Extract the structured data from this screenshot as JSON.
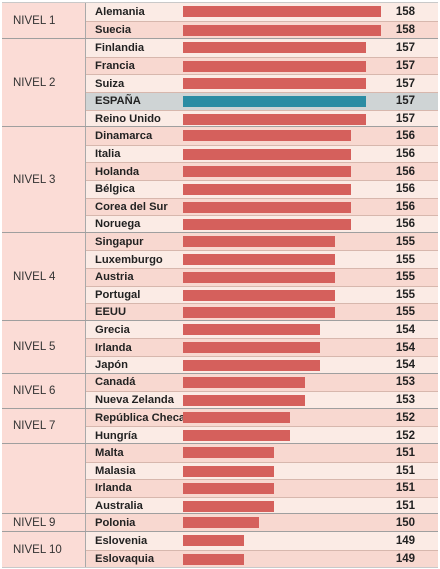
{
  "chart_data": {
    "type": "bar",
    "orientation": "horizontal",
    "title": "",
    "xlabel": "",
    "ylabel": "",
    "xlim": [
      145,
      158
    ],
    "colors": {
      "default": "#d5605c",
      "highlight": "#2b8ca3",
      "bg_even": "#f8d8d0",
      "bg_odd": "#fbebe5",
      "bg_highlight": "#cfd4d5"
    },
    "groups": [
      {
        "label": "NIVEL 1",
        "rows": [
          {
            "country": "Alemania",
            "value": 158
          },
          {
            "country": "Suecia",
            "value": 158
          }
        ]
      },
      {
        "label": "NIVEL 2",
        "rows": [
          {
            "country": "Finlandia",
            "value": 157
          },
          {
            "country": "Francia",
            "value": 157
          },
          {
            "country": "Suiza",
            "value": 157
          },
          {
            "country": "ESPAÑA",
            "value": 157,
            "highlight": true
          },
          {
            "country": "Reino Unido",
            "value": 157
          }
        ]
      },
      {
        "label": "NIVEL 3",
        "rows": [
          {
            "country": "Dinamarca",
            "value": 156
          },
          {
            "country": "Italia",
            "value": 156
          },
          {
            "country": "Holanda",
            "value": 156
          },
          {
            "country": "Bélgica",
            "value": 156
          },
          {
            "country": "Corea del Sur",
            "value": 156
          },
          {
            "country": "Noruega",
            "value": 156
          }
        ]
      },
      {
        "label": "NIVEL 4",
        "rows": [
          {
            "country": "Singapur",
            "value": 155
          },
          {
            "country": "Luxemburgo",
            "value": 155
          },
          {
            "country": "Austria",
            "value": 155
          },
          {
            "country": "Portugal",
            "value": 155
          },
          {
            "country": "EEUU",
            "value": 155
          }
        ]
      },
      {
        "label": "NIVEL 5",
        "rows": [
          {
            "country": "Grecia",
            "value": 154
          },
          {
            "country": "Irlanda",
            "value": 154
          },
          {
            "country": "Japón",
            "value": 154
          }
        ]
      },
      {
        "label": "NIVEL 6",
        "rows": [
          {
            "country": "Canadá",
            "value": 153
          },
          {
            "country": "Nueva Zelanda",
            "value": 153
          }
        ]
      },
      {
        "label": "NIVEL 7",
        "rows": [
          {
            "country": "República Checa",
            "value": 152
          },
          {
            "country": "Hungría",
            "value": 152
          }
        ]
      },
      {
        "label": "",
        "rows": [
          {
            "country": "Malta",
            "value": 151
          },
          {
            "country": "Malasia",
            "value": 151
          },
          {
            "country": "Irlanda",
            "value": 151
          },
          {
            "country": "Australia",
            "value": 151
          }
        ]
      },
      {
        "label": "NIVEL 9",
        "rows": [
          {
            "country": "Polonia",
            "value": 150
          }
        ]
      },
      {
        "label": "NIVEL 10",
        "rows": [
          {
            "country": "Eslovenia",
            "value": 149
          },
          {
            "country": "Eslovaquia",
            "value": 149
          }
        ]
      }
    ]
  }
}
